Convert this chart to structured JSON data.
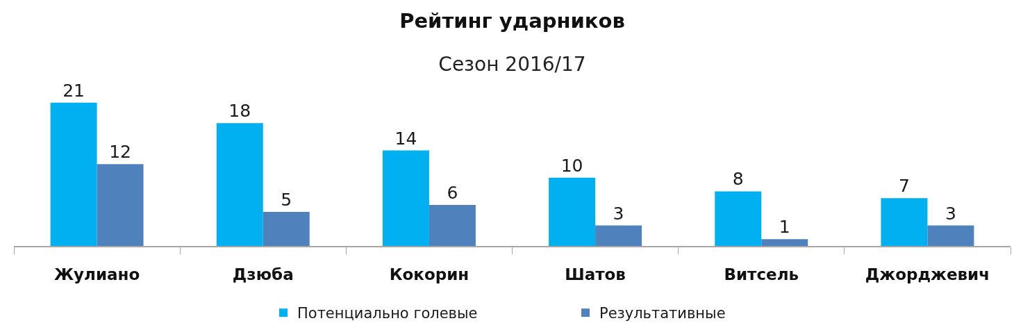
{
  "chart_data": {
    "type": "bar",
    "title": "Рейтинг ударников",
    "subtitle": "Сезон 2016/17",
    "categories": [
      "Жулиано",
      "Дзюба",
      "Кокорин",
      "Шатов",
      "Витсель",
      "Джорджевич"
    ],
    "series": [
      {
        "name": "Потенциально голевые",
        "color": "#00b0f0",
        "values": [
          21,
          18,
          14,
          10,
          8,
          7
        ]
      },
      {
        "name": "Результативные",
        "color": "#4f81bd",
        "values": [
          12,
          5,
          6,
          3,
          1,
          3
        ]
      }
    ],
    "data_labels": true,
    "legend": "bottom",
    "tick_labels": "x"
  }
}
